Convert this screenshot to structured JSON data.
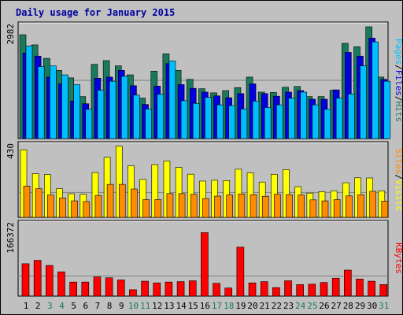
{
  "title": "Daily usage for January 2015",
  "colors": {
    "hits": "#1a7a5e",
    "files": "#0000e0",
    "pages": "#00bfff",
    "visits": "#ffff00",
    "sites": "#ff8c00",
    "kbytes": "#ff0000",
    "weekday": "#000000",
    "weekend": "#1a7a5e",
    "ylabel": "#000000"
  },
  "chart_data": [
    {
      "type": "bar",
      "x": [
        "1",
        "2",
        "3",
        "4",
        "5",
        "6",
        "7",
        "8",
        "9",
        "10",
        "11",
        "12",
        "13",
        "14",
        "15",
        "16",
        "17",
        "18",
        "19",
        "20",
        "21",
        "22",
        "23",
        "24",
        "25",
        "26",
        "27",
        "28",
        "29",
        "30",
        "31"
      ],
      "weekend_days": [
        "3",
        "4",
        "10",
        "11",
        "17",
        "18",
        "24",
        "25",
        "31"
      ],
      "ymax_label": "2982",
      "ylim": [
        0,
        2982
      ],
      "ylabel_parts": [
        {
          "text": "Pages",
          "color": "#00bfff"
        },
        {
          "text": "/",
          "color": "#000000"
        },
        {
          "text": "Files",
          "color": "#0000e0"
        },
        {
          "text": "/",
          "color": "#000000"
        },
        {
          "text": "Hits",
          "color": "#1a7a5e"
        }
      ],
      "series": [
        {
          "name": "Hits",
          "values": [
            2770,
            2500,
            2140,
            1820,
            1620,
            1120,
            1980,
            2080,
            1940,
            1700,
            1080,
            1800,
            2260,
            1820,
            1580,
            1330,
            1220,
            1280,
            1360,
            1640,
            1240,
            1230,
            1370,
            1390,
            1120,
            1120,
            1290,
            2540,
            2450,
            2982,
            1640
          ]
        },
        {
          "name": "Files",
          "values": [
            2280,
            2200,
            1640,
            1460,
            1000,
            930,
            1610,
            1640,
            1820,
            1410,
            910,
            1400,
            2000,
            1440,
            1340,
            1240,
            1140,
            1090,
            1200,
            1460,
            1200,
            1130,
            1240,
            1280,
            1050,
            1050,
            1300,
            2300,
            2200,
            2680,
            1580
          ]
        },
        {
          "name": "Pages",
          "values": [
            2470,
            1920,
            1940,
            1700,
            1440,
            780,
            1290,
            1530,
            1660,
            1160,
            790,
            1180,
            2070,
            1010,
            940,
            1100,
            900,
            880,
            790,
            1000,
            830,
            900,
            1080,
            1240,
            900,
            780,
            1080,
            1190,
            1940,
            2580,
            1530
          ]
        }
      ]
    },
    {
      "type": "bar",
      "x": [
        "1",
        "2",
        "3",
        "4",
        "5",
        "6",
        "7",
        "8",
        "9",
        "10",
        "11",
        "12",
        "13",
        "14",
        "15",
        "16",
        "17",
        "18",
        "19",
        "20",
        "21",
        "22",
        "23",
        "24",
        "25",
        "26",
        "27",
        "28",
        "29",
        "30",
        "31"
      ],
      "ymax_label": "430",
      "ylim": [
        0,
        430
      ],
      "ylabel_parts": [
        {
          "text": "Sites",
          "color": "#ff8c00"
        },
        {
          "text": "/",
          "color": "#000000"
        },
        {
          "text": "Visits",
          "color": "#ffff00"
        }
      ],
      "series": [
        {
          "name": "Visits",
          "values": [
            410,
            265,
            260,
            174,
            143,
            140,
            272,
            365,
            432,
            313,
            230,
            320,
            342,
            303,
            262,
            220,
            225,
            223,
            292,
            270,
            214,
            261,
            290,
            186,
            147,
            156,
            160,
            210,
            240,
            239,
            160
          ]
        },
        {
          "name": "Sites",
          "values": [
            190,
            174,
            136,
            118,
            100,
            96,
            133,
            200,
            200,
            172,
            108,
            108,
            144,
            144,
            140,
            114,
            129,
            136,
            142,
            137,
            128,
            140,
            138,
            136,
            106,
            100,
            108,
            130,
            137,
            158,
            98
          ]
        }
      ]
    },
    {
      "type": "bar",
      "x": [
        "1",
        "2",
        "3",
        "4",
        "5",
        "6",
        "7",
        "8",
        "9",
        "10",
        "11",
        "12",
        "13",
        "14",
        "15",
        "16",
        "17",
        "18",
        "19",
        "20",
        "21",
        "22",
        "23",
        "24",
        "25",
        "26",
        "27",
        "28",
        "29",
        "30",
        "31"
      ],
      "ymax_label": "166372",
      "ylim": [
        0,
        166372
      ],
      "ylabel_parts": [
        {
          "text": "KBytes",
          "color": "#ff0000"
        }
      ],
      "series": [
        {
          "name": "KBytes",
          "values": [
            76000,
            84000,
            72000,
            57000,
            33000,
            33000,
            45000,
            43000,
            38000,
            15000,
            35000,
            31000,
            33000,
            34000,
            36000,
            149000,
            30000,
            19000,
            115000,
            31000,
            34000,
            20000,
            36000,
            27000,
            28000,
            32000,
            42000,
            61000,
            40000,
            35000,
            27000
          ]
        }
      ]
    }
  ]
}
